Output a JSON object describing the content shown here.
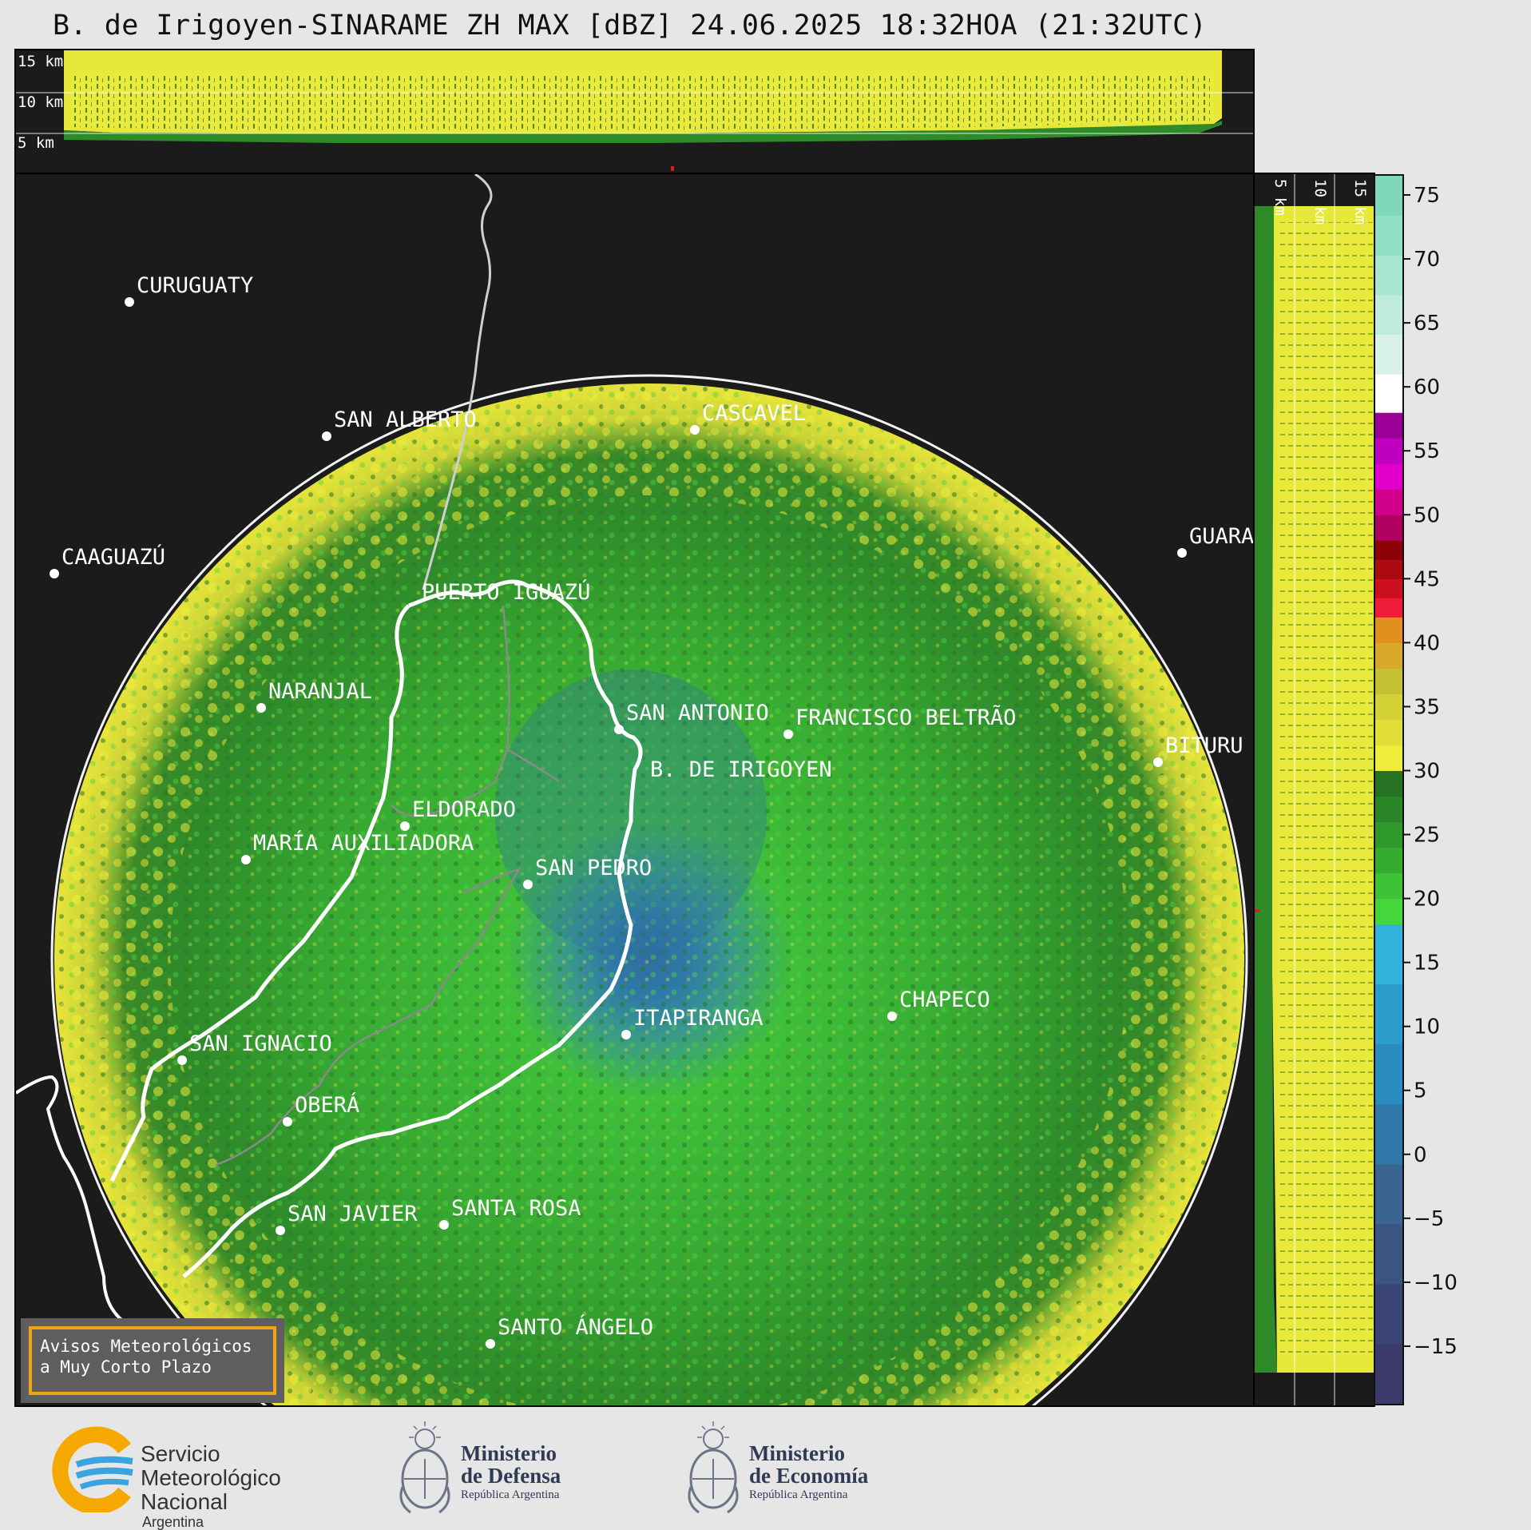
{
  "title": "B. de Irigoyen-SINARAME ZH MAX [dBZ] 24.06.2025 18:32HOA (21:32UTC)",
  "top_section": {
    "height_labels": [
      "15 km",
      "10 km",
      "5 km"
    ]
  },
  "side_section": {
    "height_labels": [
      "5 km",
      "10 km",
      "15 km"
    ]
  },
  "colorbar": {
    "unit": "dBZ",
    "ticks": [
      "75",
      "70",
      "65",
      "60",
      "55",
      "50",
      "45",
      "40",
      "35",
      "30",
      "25",
      "20",
      "15",
      "10",
      "5",
      "0",
      "−5",
      "−10",
      "−15"
    ],
    "range": [
      -19.5,
      76.5
    ],
    "segments": [
      {
        "from": -19.5,
        "to": 18,
        "colors": [
          "#3b3a6a",
          "#3a4575",
          "#3b5580",
          "#3a6590",
          "#2f78a8",
          "#2a8bbe",
          "#2b9dcd",
          "#2fb3da"
        ]
      },
      {
        "from": 18,
        "to": 30,
        "colors": [
          "#44d63a",
          "#3cc234",
          "#35ac2f",
          "#2f982a",
          "#2a8526",
          "#257222"
        ]
      },
      {
        "from": 30,
        "to": 42,
        "colors": [
          "#eeee3a",
          "#e2e038",
          "#d4d236",
          "#c6c033",
          "#d8a82a",
          "#e0901f"
        ]
      },
      {
        "from": 42,
        "to": 48,
        "colors": [
          "#ee1c3a",
          "#cc1020",
          "#aa0a10",
          "#8c0008"
        ]
      },
      {
        "from": 48,
        "to": 58,
        "colors": [
          "#b00060",
          "#d0008a",
          "#e000c8",
          "#c000c0",
          "#9a0096"
        ]
      },
      {
        "from": 58,
        "to": 61,
        "colors": [
          "#ffffff"
        ]
      },
      {
        "from": 61,
        "to": 76.5,
        "colors": [
          "#d8f2ea",
          "#c0ecde",
          "#a8e6d2",
          "#90e0c6",
          "#80d8b8"
        ]
      }
    ]
  },
  "map": {
    "radar_site": "B. DE IRIGOYEN",
    "cities": [
      {
        "name": "CURUGUATY"
      },
      {
        "name": "SAN ALBERTO"
      },
      {
        "name": "CASCAVEL"
      },
      {
        "name": "CAAGUAZÚ"
      },
      {
        "name": "PUERTO IGUAZÚ"
      },
      {
        "name": "GUARA"
      },
      {
        "name": "NARANJAL"
      },
      {
        "name": "SAN ANTONIO"
      },
      {
        "name": "FRANCISCO BELTRÃO"
      },
      {
        "name": "BITURU"
      },
      {
        "name": "B. DE IRIGOYEN"
      },
      {
        "name": "ELDORADO"
      },
      {
        "name": "MARÍA AUXILIADORA"
      },
      {
        "name": "SAN PEDRO"
      },
      {
        "name": "CHAPECO"
      },
      {
        "name": "SAN IGNACIO"
      },
      {
        "name": "ITAPIRANGA"
      },
      {
        "name": "OBERÁ"
      },
      {
        "name": "SAN JAVIER"
      },
      {
        "name": "SANTA ROSA"
      },
      {
        "name": "SANTO ÁNGELO"
      }
    ]
  },
  "notice": {
    "line1": "Avisos Meteorológicos",
    "line2": "a Muy Corto Plazo"
  },
  "footer": {
    "smn_line1": "Servicio",
    "smn_line2": "Meteorológico",
    "smn_line3": "Nacional",
    "smn_line4": "Argentina",
    "ministry1_line1": "Ministerio",
    "ministry1_line2": "de Defensa",
    "ministry1_line3": "República Argentina",
    "ministry2_line1": "Ministerio",
    "ministry2_line2": "de Economía",
    "ministry2_line3": "República Argentina"
  },
  "colors": {
    "background": "#e6e6e6",
    "panel": "#1b1b1b",
    "echo_low": "#2a8526",
    "echo_mid": "#44d63a",
    "echo_high": "#eeee3a",
    "echo_core": "#2f78a8",
    "notice_border": "#f0a21a"
  }
}
